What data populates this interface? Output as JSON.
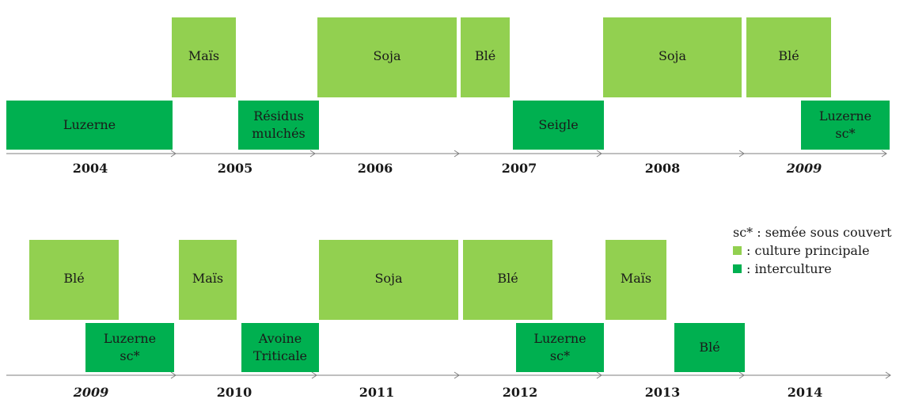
{
  "colors": {
    "main_crop": "#92d050",
    "intercrop": "#00b050",
    "axis": "#7f7f7f"
  },
  "timeline_1": {
    "years": [
      "2004",
      "2005",
      "2006",
      "2007",
      "2008",
      "2009"
    ],
    "year_italic": [
      false,
      false,
      false,
      false,
      false,
      true
    ],
    "blocks": [
      {
        "label": "Luzerne",
        "type": "interculture"
      },
      {
        "label": "Maïs",
        "type": "culture principale"
      },
      {
        "label": "Résidus\nmulchés",
        "type": "interculture"
      },
      {
        "label": "Soja",
        "type": "culture principale"
      },
      {
        "label": "Blé",
        "type": "culture principale"
      },
      {
        "label": "Seigle",
        "type": "interculture"
      },
      {
        "label": "Soja",
        "type": "culture principale"
      },
      {
        "label": "Blé",
        "type": "culture principale"
      },
      {
        "label": "Luzerne\nsc*",
        "type": "interculture"
      }
    ]
  },
  "timeline_2": {
    "years": [
      "2009",
      "2010",
      "2011",
      "2012",
      "2013",
      "2014"
    ],
    "year_italic": [
      true,
      false,
      false,
      false,
      false,
      false
    ],
    "blocks": [
      {
        "label": "Blé",
        "type": "culture principale"
      },
      {
        "label": "Luzerne\nsc*",
        "type": "interculture"
      },
      {
        "label": "Maïs",
        "type": "culture principale"
      },
      {
        "label": "Avoine\nTriticale",
        "type": "interculture"
      },
      {
        "label": "Soja",
        "type": "culture principale"
      },
      {
        "label": "Blé",
        "type": "culture principale"
      },
      {
        "label": "Luzerne\nsc*",
        "type": "interculture"
      },
      {
        "label": "Maïs",
        "type": "culture principale"
      },
      {
        "label": "Blé",
        "type": "interculture"
      }
    ]
  },
  "legend": {
    "note": "sc* : semée sous couvert",
    "main_crop": ": culture principale",
    "intercrop": ": interculture"
  }
}
